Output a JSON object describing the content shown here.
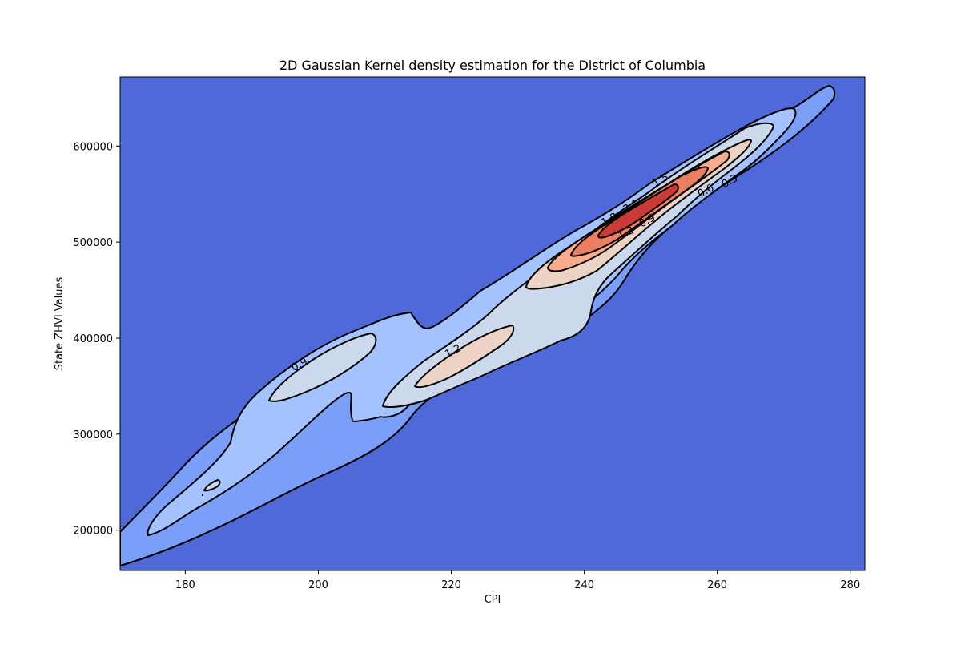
{
  "chart_data": {
    "type": "contour",
    "title": "2D Gaussian Kernel density estimation for the District of Columbia",
    "xlabel": "CPI",
    "ylabel": "State ZHVI Values",
    "xlim": [
      170.2,
      282.2
    ],
    "ylim": [
      158000,
      672000
    ],
    "xticks": [
      "180",
      "200",
      "220",
      "240",
      "260",
      "280"
    ],
    "yticks": [
      "200000",
      "300000",
      "400000",
      "500000",
      "600000"
    ],
    "grid": false,
    "colormap": "coolwarm",
    "colors": {
      "background": "#4f69d9",
      "level_0_3": "#7b9ff9",
      "level_0_6": "#a3c2fe",
      "level_0_9": "#ccd9ed",
      "level_1_2": "#ecd3c5",
      "level_1_5": "#f7ac8e",
      "level_1_8": "#ec7f63",
      "level_2_1": "#ca3b37",
      "line": "#000000"
    },
    "contour_levels": [
      0.3,
      0.6,
      0.9,
      1.2,
      1.5,
      1.8,
      2.1
    ],
    "contour_labels": [
      {
        "text": "0.3",
        "x": 261.9,
        "y": 563000,
        "angle": -28
      },
      {
        "text": "0.6",
        "x": 258.3,
        "y": 553000,
        "angle": -28
      },
      {
        "text": "0.9",
        "x": 249.5,
        "y": 522000,
        "angle": -28
      },
      {
        "text": "1.2",
        "x": 246.3,
        "y": 509000,
        "angle": -28
      },
      {
        "text": "1.5",
        "x": 251.5,
        "y": 564000,
        "angle": -28
      },
      {
        "text": "1.8",
        "x": 243.8,
        "y": 523000,
        "angle": -28
      },
      {
        "text": "2.1",
        "x": 247.1,
        "y": 537000,
        "angle": -28
      },
      {
        "text": "0.9",
        "x": 197.2,
        "y": 372000,
        "angle": -28
      },
      {
        "text": "1.2",
        "x": 220.3,
        "y": 386000,
        "angle": -28
      }
    ]
  }
}
